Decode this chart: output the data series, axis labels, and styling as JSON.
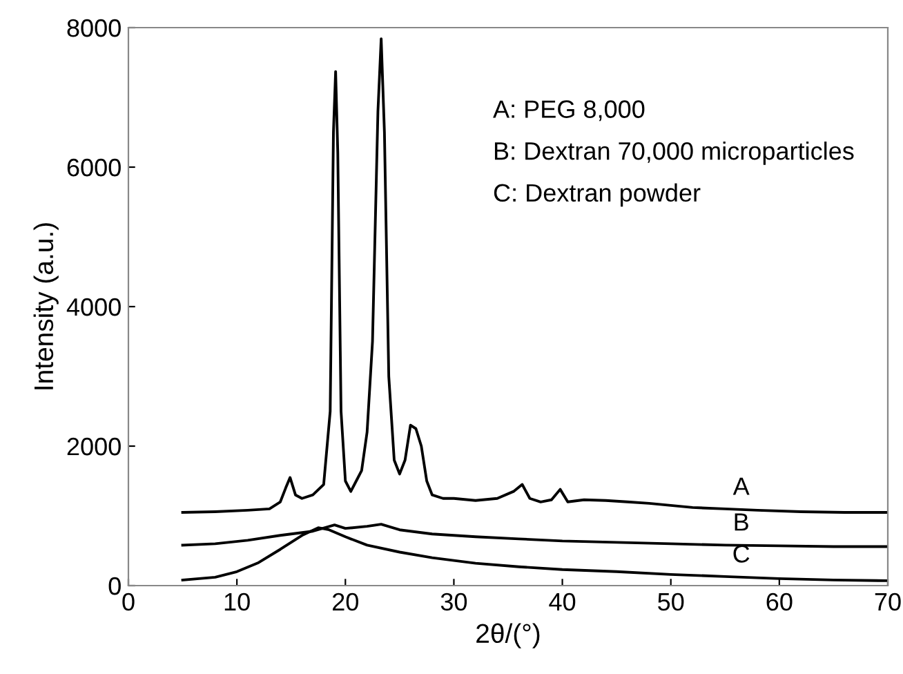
{
  "chart_data": {
    "type": "line",
    "xlabel": "2θ/(°)",
    "ylabel": "Intensity (a.u.)",
    "xlim": [
      0,
      70
    ],
    "ylim": [
      0,
      8000
    ],
    "xticks": [
      0,
      10,
      20,
      30,
      40,
      50,
      60,
      70
    ],
    "yticks": [
      0,
      2000,
      4000,
      6000,
      8000
    ],
    "grid": false,
    "marker": "none",
    "line_style": "solid",
    "series": [
      {
        "color": "#000000",
        "x": [
          5,
          8,
          11,
          13,
          14,
          14.5,
          14.9,
          15.4,
          16,
          17,
          18,
          18.6,
          18.9,
          19.1,
          19.3,
          19.6,
          20,
          20.5,
          21,
          21.5,
          22,
          22.5,
          23,
          23.3,
          23.6,
          24,
          24.5,
          25,
          25.5,
          26,
          26.5,
          27,
          27.5,
          28,
          29,
          30,
          32,
          34,
          35.5,
          36.3,
          37,
          38,
          39,
          39.8,
          40.5,
          42,
          44,
          46,
          48,
          50,
          52,
          55,
          58,
          62,
          66,
          70
        ],
        "values": [
          1050,
          1060,
          1080,
          1100,
          1200,
          1400,
          1550,
          1300,
          1250,
          1300,
          1450,
          2500,
          6500,
          7370,
          6200,
          2500,
          1500,
          1350,
          1500,
          1650,
          2200,
          3500,
          6800,
          7840,
          6500,
          3000,
          1800,
          1600,
          1800,
          2300,
          2250,
          2000,
          1500,
          1300,
          1250,
          1250,
          1220,
          1250,
          1350,
          1450,
          1250,
          1200,
          1230,
          1380,
          1200,
          1230,
          1220,
          1200,
          1180,
          1150,
          1120,
          1100,
          1080,
          1060,
          1050,
          1050
        ]
      },
      {
        "color": "#000000",
        "x": [
          5,
          8,
          11,
          14,
          17,
          19,
          20,
          22,
          23.3,
          25,
          28,
          32,
          36,
          40,
          45,
          50,
          55,
          60,
          65,
          70
        ],
        "values": [
          580,
          600,
          650,
          720,
          780,
          870,
          820,
          850,
          880,
          800,
          740,
          700,
          670,
          640,
          620,
          600,
          580,
          570,
          560,
          560
        ]
      },
      {
        "color": "#000000",
        "x": [
          5,
          8,
          10,
          12,
          14,
          16,
          17.5,
          18.5,
          20,
          22,
          25,
          28,
          32,
          36,
          40,
          45,
          50,
          55,
          60,
          65,
          70
        ],
        "values": [
          80,
          120,
          200,
          330,
          520,
          720,
          830,
          800,
          700,
          580,
          480,
          400,
          320,
          270,
          230,
          200,
          160,
          130,
          100,
          80,
          70
        ]
      }
    ],
    "annotations": [
      "A: PEG 8,000",
      "B: Dextran 70,000 microparticles",
      "C: Dextran powder",
      "A",
      "B",
      "C"
    ]
  }
}
